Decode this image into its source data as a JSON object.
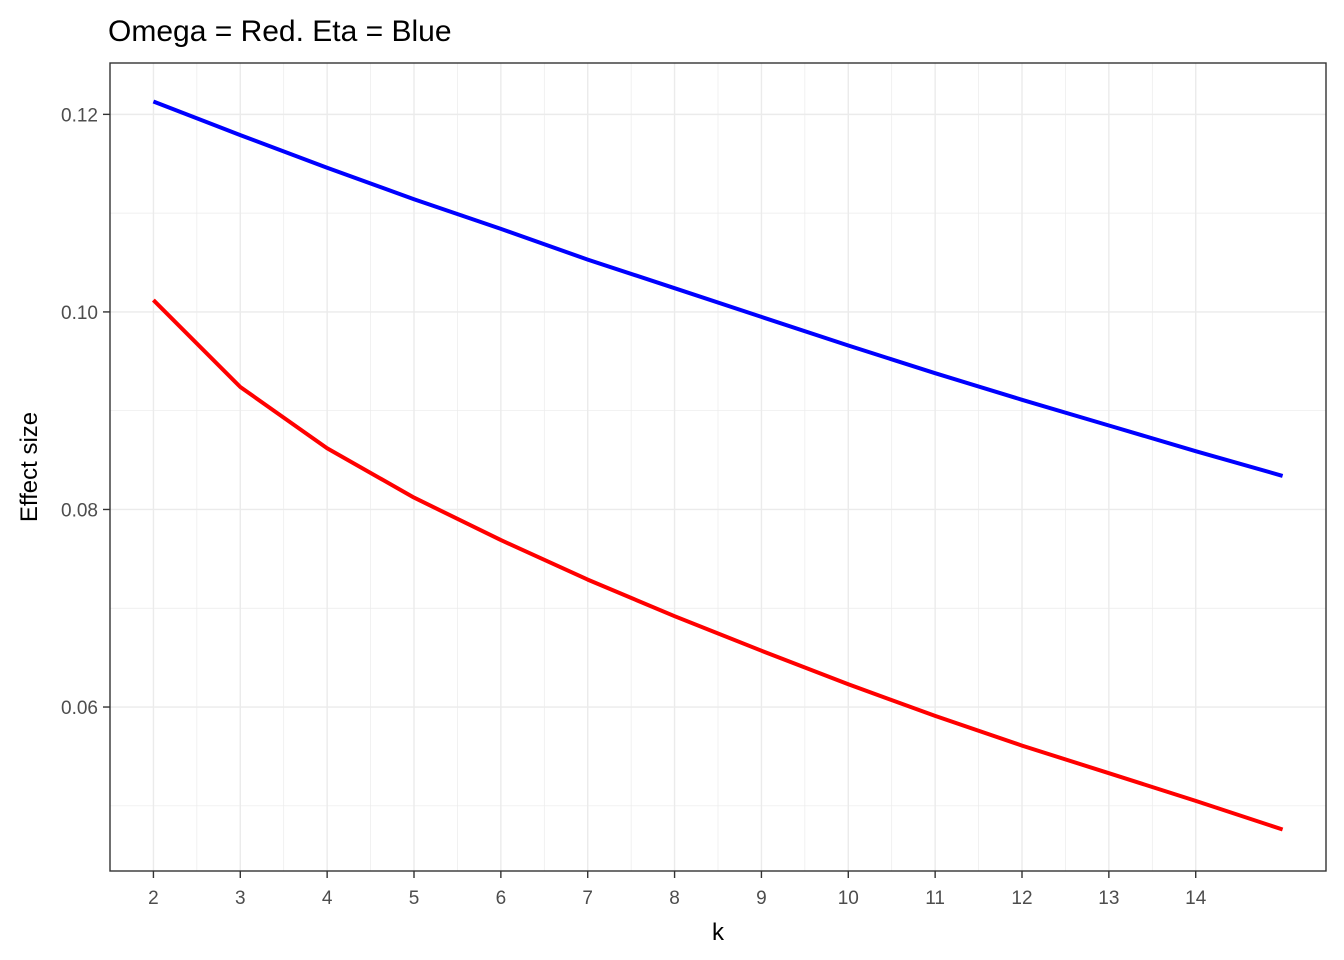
{
  "chart_data": {
    "type": "line",
    "title": "Omega = Red.  Eta = Blue",
    "xlabel": "k",
    "ylabel": "Effect size",
    "xlim": [
      1.5,
      15.5
    ],
    "ylim": [
      0.0434,
      0.1252
    ],
    "x_ticks": [
      2,
      3,
      4,
      5,
      6,
      7,
      8,
      9,
      10,
      11,
      12,
      13,
      14
    ],
    "x_tick_labels": [
      "2",
      "3",
      "4",
      "5",
      "6",
      "7",
      "8",
      "9",
      "10",
      "11",
      "12",
      "13",
      "14"
    ],
    "y_ticks": [
      0.06,
      0.08,
      0.1,
      0.12
    ],
    "y_tick_labels": [
      "0.06",
      "0.08",
      "0.10",
      "0.12"
    ],
    "grid": true,
    "x": [
      2,
      3,
      4,
      5,
      6,
      7,
      8,
      9,
      10,
      11,
      12,
      13,
      14,
      15
    ],
    "series": [
      {
        "color": "#0000ff",
        "values": [
          0.1213,
          0.1179,
          0.1146,
          0.1114,
          0.1084,
          0.1053,
          0.1024,
          0.0995,
          0.0966,
          0.0938,
          0.0911,
          0.0885,
          0.0859,
          0.0834
        ]
      },
      {
        "color": "#ff0000",
        "values": [
          0.1012,
          0.0924,
          0.0862,
          0.0812,
          0.0769,
          0.0729,
          0.0692,
          0.0657,
          0.0623,
          0.0591,
          0.0561,
          0.0533,
          0.0505,
          0.0476
        ]
      }
    ]
  }
}
